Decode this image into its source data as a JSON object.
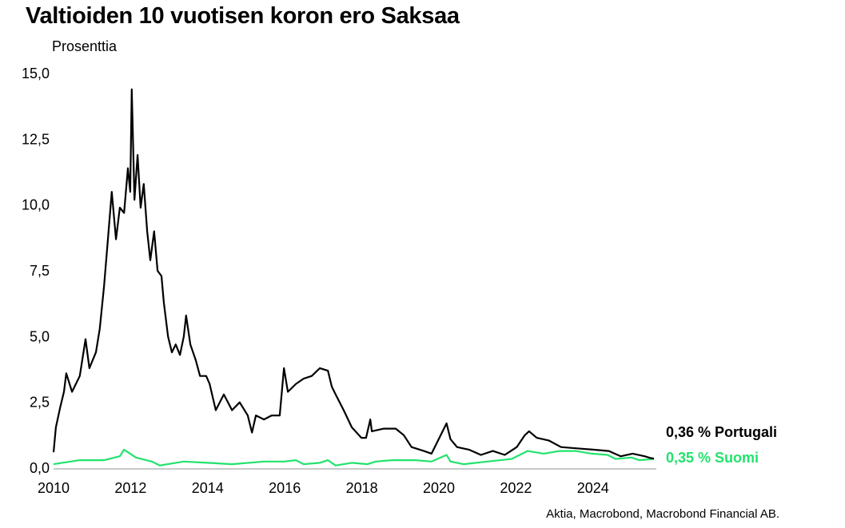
{
  "chart_data": {
    "type": "line",
    "title": "Valtioiden 10 vuotisen koron ero Saksaa",
    "ylabel": "Prosenttia",
    "xlabel": "",
    "source": "Aktia, Macrobond, Macrobond Financial AB.",
    "xlim": [
      2010,
      2025.6
    ],
    "ylim": [
      0,
      15
    ],
    "x_ticks": [
      "2010",
      "2012",
      "2014",
      "2016",
      "2018",
      "2020",
      "2022",
      "2024"
    ],
    "y_ticks": [
      "0,0",
      "2,5",
      "5,0",
      "7,5",
      "10,0",
      "12,5",
      "15,0"
    ],
    "grid": false,
    "legend_placement": "right, at line ends",
    "series": [
      {
        "name": "Portugali",
        "label": "0,36 % Portugali",
        "color": "#000000",
        "points": [
          [
            2010.0,
            0.6
          ],
          [
            2010.06,
            1.55
          ],
          [
            2010.17,
            2.3
          ],
          [
            2010.27,
            2.9
          ],
          [
            2010.33,
            3.6
          ],
          [
            2010.48,
            2.9
          ],
          [
            2010.68,
            3.5
          ],
          [
            2010.83,
            4.9
          ],
          [
            2010.93,
            3.8
          ],
          [
            2011.1,
            4.4
          ],
          [
            2011.2,
            5.3
          ],
          [
            2011.31,
            6.9
          ],
          [
            2011.41,
            8.7
          ],
          [
            2011.51,
            10.5
          ],
          [
            2011.62,
            8.7
          ],
          [
            2011.72,
            9.9
          ],
          [
            2011.83,
            9.7
          ],
          [
            2011.93,
            11.4
          ],
          [
            2011.99,
            10.5
          ],
          [
            2012.03,
            14.4
          ],
          [
            2012.1,
            10.2
          ],
          [
            2012.18,
            11.9
          ],
          [
            2012.26,
            9.9
          ],
          [
            2012.34,
            10.8
          ],
          [
            2012.43,
            9.0
          ],
          [
            2012.51,
            7.9
          ],
          [
            2012.61,
            9.0
          ],
          [
            2012.7,
            7.5
          ],
          [
            2012.8,
            7.3
          ],
          [
            2012.86,
            6.3
          ],
          [
            2012.97,
            5.0
          ],
          [
            2013.07,
            4.4
          ],
          [
            2013.17,
            4.7
          ],
          [
            2013.28,
            4.3
          ],
          [
            2013.38,
            5.0
          ],
          [
            2013.44,
            5.8
          ],
          [
            2013.55,
            4.7
          ],
          [
            2013.69,
            4.1
          ],
          [
            2013.8,
            3.5
          ],
          [
            2013.96,
            3.5
          ],
          [
            2014.05,
            3.2
          ],
          [
            2014.21,
            2.2
          ],
          [
            2014.42,
            2.8
          ],
          [
            2014.63,
            2.2
          ],
          [
            2014.83,
            2.5
          ],
          [
            2015.04,
            2.0
          ],
          [
            2015.15,
            1.35
          ],
          [
            2015.25,
            2.0
          ],
          [
            2015.46,
            1.85
          ],
          [
            2015.66,
            2.0
          ],
          [
            2015.87,
            2.0
          ],
          [
            2015.98,
            3.8
          ],
          [
            2016.08,
            2.9
          ],
          [
            2016.29,
            3.2
          ],
          [
            2016.49,
            3.4
          ],
          [
            2016.7,
            3.5
          ],
          [
            2016.91,
            3.8
          ],
          [
            2017.12,
            3.7
          ],
          [
            2017.22,
            3.1
          ],
          [
            2017.32,
            2.8
          ],
          [
            2017.53,
            2.2
          ],
          [
            2017.74,
            1.55
          ],
          [
            2017.99,
            1.15
          ],
          [
            2018.11,
            1.15
          ],
          [
            2018.22,
            1.85
          ],
          [
            2018.26,
            1.4
          ],
          [
            2018.57,
            1.5
          ],
          [
            2018.88,
            1.5
          ],
          [
            2019.09,
            1.25
          ],
          [
            2019.29,
            0.8
          ],
          [
            2019.61,
            0.65
          ],
          [
            2019.81,
            0.55
          ],
          [
            2020.2,
            1.7
          ],
          [
            2020.3,
            1.1
          ],
          [
            2020.47,
            0.8
          ],
          [
            2020.78,
            0.7
          ],
          [
            2021.09,
            0.5
          ],
          [
            2021.4,
            0.65
          ],
          [
            2021.71,
            0.5
          ],
          [
            2022.02,
            0.8
          ],
          [
            2022.23,
            1.25
          ],
          [
            2022.34,
            1.4
          ],
          [
            2022.54,
            1.15
          ],
          [
            2022.85,
            1.05
          ],
          [
            2023.17,
            0.8
          ],
          [
            2023.58,
            0.75
          ],
          [
            2024.0,
            0.7
          ],
          [
            2024.41,
            0.65
          ],
          [
            2024.72,
            0.45
          ],
          [
            2025.03,
            0.55
          ],
          [
            2025.34,
            0.45
          ],
          [
            2025.5,
            0.38
          ],
          [
            2025.58,
            0.36
          ]
        ]
      },
      {
        "name": "Suomi",
        "label": "0,35 % Suomi",
        "color": "#22e36c",
        "points": [
          [
            2010.0,
            0.15
          ],
          [
            2010.68,
            0.3
          ],
          [
            2011.31,
            0.3
          ],
          [
            2011.72,
            0.45
          ],
          [
            2011.83,
            0.7
          ],
          [
            2012.14,
            0.4
          ],
          [
            2012.55,
            0.25
          ],
          [
            2012.76,
            0.1
          ],
          [
            2013.38,
            0.25
          ],
          [
            2014.0,
            0.2
          ],
          [
            2014.63,
            0.15
          ],
          [
            2015.46,
            0.25
          ],
          [
            2015.98,
            0.25
          ],
          [
            2016.29,
            0.3
          ],
          [
            2016.49,
            0.15
          ],
          [
            2016.91,
            0.2
          ],
          [
            2017.12,
            0.3
          ],
          [
            2017.32,
            0.1
          ],
          [
            2017.74,
            0.2
          ],
          [
            2018.15,
            0.15
          ],
          [
            2018.36,
            0.25
          ],
          [
            2018.78,
            0.3
          ],
          [
            2019.4,
            0.3
          ],
          [
            2019.81,
            0.25
          ],
          [
            2020.2,
            0.5
          ],
          [
            2020.3,
            0.25
          ],
          [
            2020.64,
            0.15
          ],
          [
            2021.26,
            0.25
          ],
          [
            2021.89,
            0.35
          ],
          [
            2022.3,
            0.65
          ],
          [
            2022.72,
            0.55
          ],
          [
            2023.13,
            0.65
          ],
          [
            2023.55,
            0.65
          ],
          [
            2023.96,
            0.55
          ],
          [
            2024.38,
            0.5
          ],
          [
            2024.58,
            0.35
          ],
          [
            2025.0,
            0.4
          ],
          [
            2025.2,
            0.3
          ],
          [
            2025.58,
            0.35
          ]
        ]
      }
    ]
  }
}
